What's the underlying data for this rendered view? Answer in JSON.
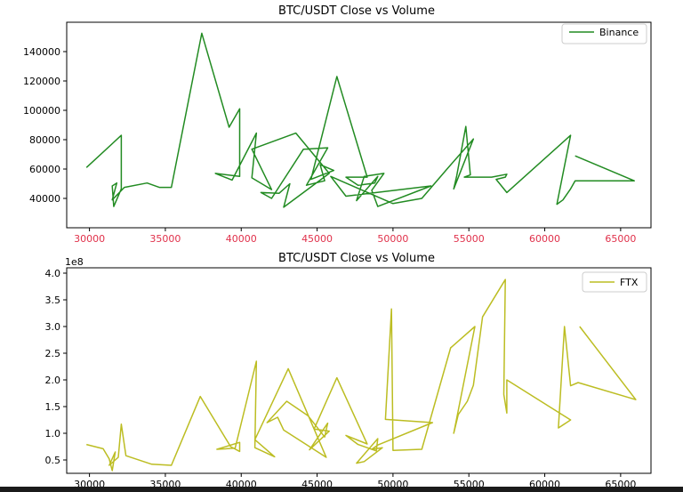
{
  "chart_data": [
    {
      "type": "line",
      "title": "BTC/USDT Close vs Volume",
      "xlabel": "",
      "ylabel": "",
      "xlim": [
        28500,
        67000
      ],
      "ylim": [
        20000,
        160000
      ],
      "x_ticks": [
        "30000",
        "35000",
        "40000",
        "45000",
        "50000",
        "55000",
        "60000",
        "65000"
      ],
      "y_ticks": [
        "40000",
        "60000",
        "80000",
        "100000",
        "120000",
        "140000"
      ],
      "x_tick_color": "#e0304a",
      "legend_position": "top-right",
      "series": [
        {
          "name": "Binance",
          "color": "#228b22",
          "x": [
            29800,
            32100,
            32100,
            31600,
            31500,
            31800,
            31500,
            32300,
            33800,
            34600,
            35400,
            37400,
            39200,
            39900,
            39900,
            38300,
            39400,
            41000,
            40700,
            42000,
            40700,
            43600,
            45800,
            42800,
            43200,
            42500,
            41300,
            42000,
            44100,
            45700,
            44300,
            45500,
            45200,
            46100,
            44600,
            46300,
            48300,
            46900,
            47700,
            48800,
            49000,
            47600,
            48100,
            49400,
            48600,
            49000,
            52500,
            46900,
            45900,
            50000,
            51900,
            53600,
            55300,
            54000,
            54200,
            54800,
            55100,
            54700,
            56500,
            57500,
            57400,
            56800,
            57500,
            61700,
            60800,
            61200,
            61700,
            62000,
            65900,
            62000
          ],
          "y": [
            61000,
            83000,
            46500,
            34500,
            48500,
            50500,
            39000,
            47500,
            50500,
            47500,
            47500,
            152500,
            88500,
            101000,
            55000,
            57000,
            52500,
            84500,
            54000,
            46000,
            73500,
            84500,
            57000,
            34000,
            50000,
            43500,
            44000,
            40000,
            73500,
            74500,
            49000,
            52000,
            63000,
            59000,
            53000,
            123000,
            54500,
            54500,
            49000,
            50500,
            55000,
            38500,
            55000,
            57000,
            45500,
            34500,
            48500,
            41500,
            55000,
            36500,
            40000,
            60500,
            80500,
            46500,
            55500,
            89000,
            56000,
            54500,
            54500,
            56500,
            54500,
            53000,
            44000,
            83000,
            36000,
            39000,
            46500,
            52000,
            52000,
            69000
          ]
        }
      ]
    },
    {
      "type": "line",
      "title": "BTC/USDT Close vs Volume",
      "xlabel": "",
      "ylabel": "",
      "offset_text": "1e8",
      "xlim": [
        28500,
        67000
      ],
      "ylim": [
        0.25,
        4.1
      ],
      "x_ticks": [
        "30000",
        "35000",
        "40000",
        "45000",
        "50000",
        "55000",
        "60000",
        "65000"
      ],
      "y_ticks": [
        "0.5",
        "1.0",
        "1.5",
        "2.0",
        "2.5",
        "3.0",
        "3.5",
        "4.0"
      ],
      "legend_position": "top-right",
      "series": [
        {
          "name": "FTX",
          "color": "#bcbd22",
          "x": [
            29800,
            30900,
            31300,
            31500,
            31700,
            31300,
            31900,
            32100,
            32400,
            34100,
            35400,
            37300,
            39300,
            39900,
            39900,
            38400,
            39600,
            41000,
            40900,
            42200,
            40900,
            43100,
            45600,
            42800,
            42400,
            41700,
            43000,
            44400,
            45500,
            45700,
            44500,
            45800,
            44800,
            46300,
            48300,
            46900,
            47700,
            48900,
            49000,
            47600,
            48100,
            49300,
            48600,
            49000,
            52600,
            49500,
            49900,
            50000,
            51900,
            53800,
            55400,
            54000,
            54300,
            54900,
            55300,
            55900,
            57400,
            57300,
            57500,
            57500,
            61700,
            60900,
            61300,
            61700,
            62200,
            66000,
            62300
          ],
          "y": [
            0.79,
            0.71,
            0.52,
            0.3,
            0.65,
            0.4,
            0.55,
            1.17,
            0.58,
            0.42,
            0.4,
            1.69,
            0.75,
            0.66,
            0.83,
            0.7,
            0.72,
            2.35,
            0.73,
            0.56,
            0.88,
            2.21,
            0.55,
            1.06,
            1.3,
            1.2,
            1.6,
            1.33,
            0.93,
            1.19,
            0.69,
            1.04,
            1.08,
            2.04,
            0.8,
            0.96,
            0.79,
            0.67,
            0.9,
            0.44,
            0.47,
            0.73,
            0.7,
            0.78,
            1.2,
            1.26,
            3.33,
            0.68,
            0.7,
            2.6,
            3.0,
            1.0,
            1.35,
            1.6,
            1.9,
            3.18,
            3.88,
            1.73,
            1.38,
            2.0,
            1.25,
            1.1,
            3.0,
            1.89,
            1.95,
            1.63,
            3.0
          ]
        }
      ]
    }
  ]
}
